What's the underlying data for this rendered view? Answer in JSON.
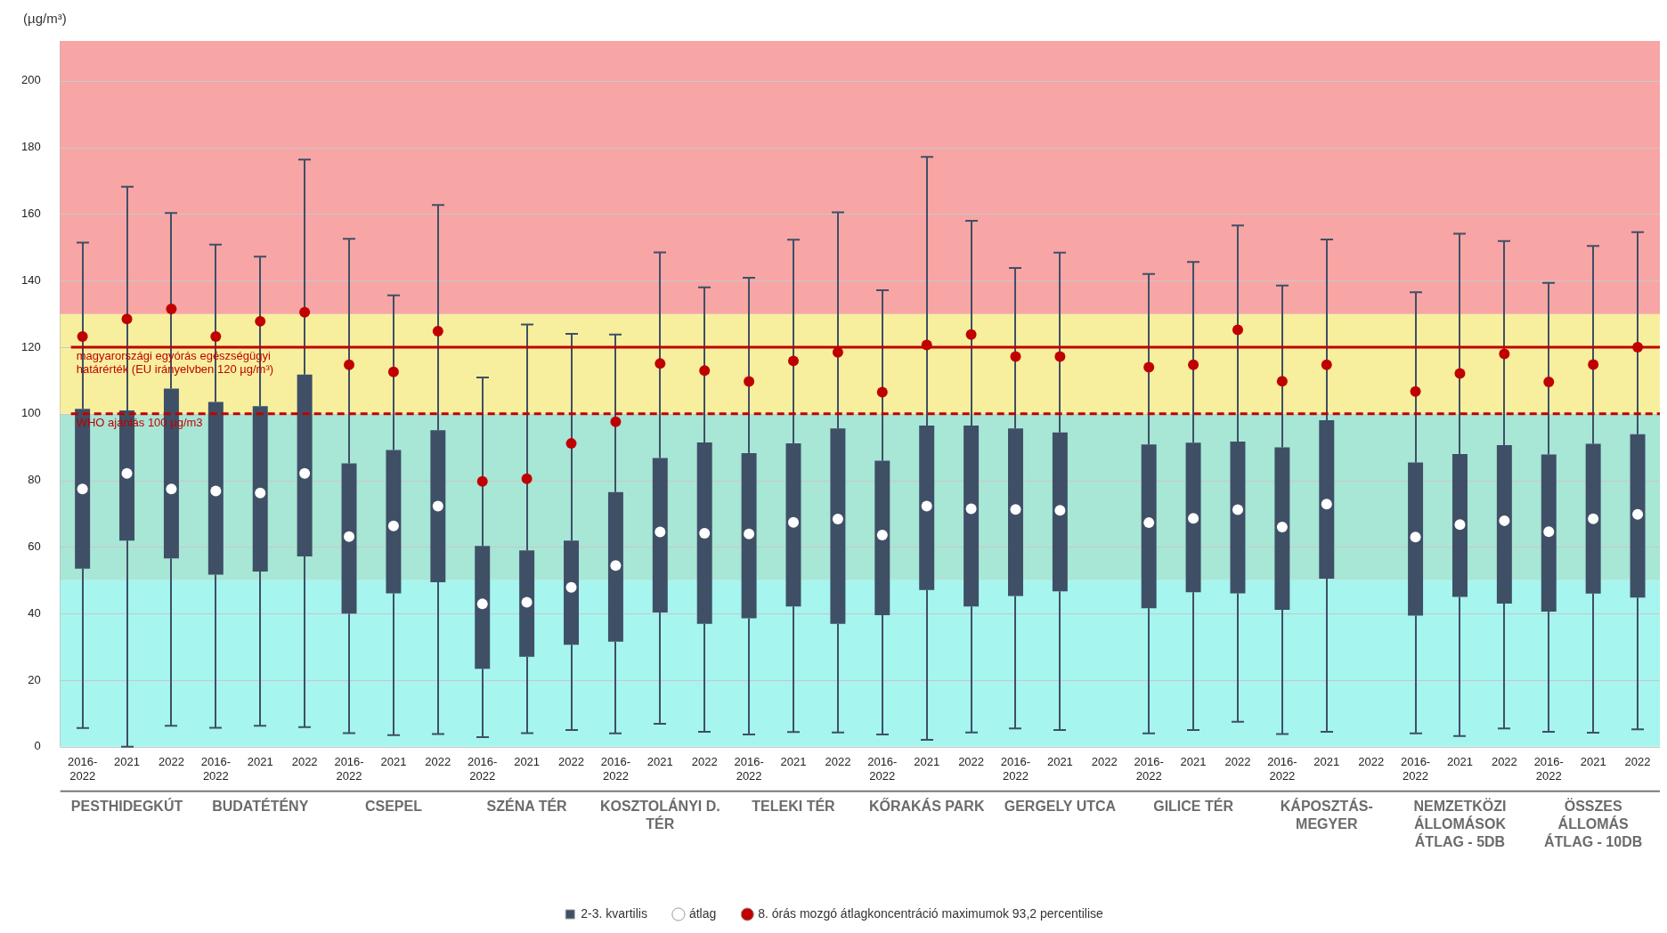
{
  "chart_data": {
    "type": "box",
    "ylabel": "(µg/m³)",
    "categories": [
      "2016-2022",
      "2021",
      "2022",
      "2016-2022",
      "2021",
      "2022",
      "2016-2022",
      "2021",
      "2022",
      "2016-2022",
      "2021",
      "2022",
      "2016-2022",
      "2021",
      "2022",
      "2016-2022",
      "2021",
      "2022",
      "2016-2022",
      "2021",
      "2022",
      "2016-2022",
      "2021",
      "2022",
      "2016-2022",
      "2021",
      "2022",
      "2016-2022",
      "2021",
      "2022",
      "2016-2022",
      "2021",
      "2022",
      "2016-2022",
      "2021",
      "2022"
    ],
    "annotations": [
      "PESTHIDEGKÚT",
      "BUDATÉTÉNY",
      "CSEPEL",
      "SZÉNA TÉR",
      "KOSZTOLÁNYI D. TÉR",
      "TELEKI TÉR",
      "KŐRAKÁS PARK",
      "GERGELY UTCA",
      "GILICE TÉR",
      "KÁPOSZTÁS-MEGYER",
      "NEMZETKÖZI ÁLLOMÁSOK ÁTLAG - 5DB",
      "ÖSSZES ÁLLOMÁS ÁTLAG - 10DB"
    ],
    "series": [
      {
        "name": "2-3. kvartilis",
        "color": "#3f4f66",
        "boxes": [
          {
            "low": 5.6,
            "q1": 53.5,
            "q3": 101.5,
            "high": 151.4
          },
          {
            "low": 0,
            "q1": 61.9,
            "q3": 101,
            "high": 168.2
          },
          {
            "low": 6.3,
            "q1": 56.6,
            "q3": 107.6,
            "high": 160.3
          },
          {
            "low": 5.7,
            "q1": 51.7,
            "q3": 103.6,
            "high": 150.8
          },
          {
            "low": 6.3,
            "q1": 52.6,
            "q3": 102.3,
            "high": 147.2
          },
          {
            "low": 5.9,
            "q1": 57.2,
            "q3": 111.8,
            "high": 176.4
          },
          {
            "low": 4.1,
            "q1": 40.0,
            "q3": 85.1,
            "high": 152.6
          },
          {
            "low": 3.5,
            "q1": 46.1,
            "q3": 89.1,
            "high": 135.6
          },
          {
            "low": 3.8,
            "q1": 49.4,
            "q3": 95.1,
            "high": 162.7
          },
          {
            "low": 2.9,
            "q1": 23.4,
            "q3": 60.3,
            "high": 110.9
          },
          {
            "low": 4.1,
            "q1": 27.0,
            "q3": 59.0,
            "high": 126.8
          },
          {
            "low": 5.0,
            "q1": 30.6,
            "q3": 61.9,
            "high": 124.0
          },
          {
            "low": 4.0,
            "q1": 31.6,
            "q3": 76.5,
            "high": 123.8
          },
          {
            "low": 6.9,
            "q1": 40.3,
            "q3": 86.7,
            "high": 148.5
          },
          {
            "low": 4.5,
            "q1": 36.9,
            "q3": 91.4,
            "high": 138.0
          },
          {
            "low": 3.7,
            "q1": 38.6,
            "q3": 88.2,
            "high": 140.9
          },
          {
            "low": 4.4,
            "q1": 42.1,
            "q3": 91.1,
            "high": 152.3
          },
          {
            "low": 4.3,
            "q1": 36.9,
            "q3": 95.6,
            "high": 160.5
          },
          {
            "low": 3.7,
            "q1": 39.5,
            "q3": 85.9,
            "high": 137.1
          },
          {
            "low": 2.1,
            "q1": 47.1,
            "q3": 96.5,
            "high": 177.2
          },
          {
            "low": 4.3,
            "q1": 42.1,
            "q3": 96.5,
            "high": 158.0
          },
          {
            "low": 5.5,
            "q1": 45.3,
            "q3": 95.6,
            "high": 143.8
          },
          {
            "low": 5.0,
            "q1": 46.7,
            "q3": 94.4,
            "high": 148.4
          },
          null,
          {
            "low": 4.0,
            "q1": 41.6,
            "q3": 90.8,
            "high": 142.0
          },
          {
            "low": 5.0,
            "q1": 46.4,
            "q3": 91.3,
            "high": 145.6
          },
          {
            "low": 7.5,
            "q1": 46.1,
            "q3": 91.7,
            "high": 156.6
          },
          {
            "low": 3.8,
            "q1": 41.1,
            "q3": 89.9,
            "high": 138.5
          },
          {
            "low": 4.5,
            "q1": 50.5,
            "q3": 98.1,
            "high": 152.4
          },
          null,
          {
            "low": 4.0,
            "q1": 39.4,
            "q3": 85.4,
            "high": 136.5
          },
          {
            "low": 3.2,
            "q1": 45.0,
            "q3": 87.9,
            "high": 154.1
          },
          {
            "low": 5.5,
            "q1": 43.0,
            "q3": 90.6,
            "high": 151.9
          },
          {
            "low": 4.5,
            "q1": 40.6,
            "q3": 87.8,
            "high": 139.3
          },
          {
            "low": 4.2,
            "q1": 46.0,
            "q3": 91.0,
            "high": 150.4
          },
          {
            "low": 5.2,
            "q1": 44.8,
            "q3": 93.9,
            "high": 154.6
          }
        ]
      },
      {
        "type": "scatter",
        "name": "átlag",
        "color": "#ffffff",
        "values": [
          77.4,
          82.1,
          77.4,
          76.8,
          76.2,
          82.1,
          63.1,
          66.3,
          72.3,
          42.9,
          43.4,
          47.9,
          54.4,
          64.5,
          64.1,
          63.9,
          67.4,
          68.4,
          63.6,
          72.3,
          71.5,
          71.3,
          71.0,
          null,
          67.3,
          68.6,
          71.2,
          66.0,
          72.9,
          null,
          63.0,
          66.7,
          67.9,
          64.6,
          68.5,
          69.8
        ]
      },
      {
        "type": "scatter",
        "name": "8. órás mozgó átlagkoncentráció maximumok 93,2 percentilise",
        "color": "#c00000",
        "values": [
          123.2,
          128.5,
          131.5,
          123.2,
          127.8,
          130.5,
          114.7,
          112.6,
          124.8,
          79.7,
          80.5,
          91.1,
          97.6,
          115.1,
          113.0,
          109.7,
          115.9,
          118.5,
          106.5,
          120.7,
          123.8,
          117.2,
          117.2,
          null,
          114.0,
          114.7,
          125.2,
          109.8,
          114.7,
          null,
          106.7,
          112.1,
          118.0,
          109.6,
          114.8,
          120.0
        ]
      }
    ],
    "ylim": [
      0,
      212
    ],
    "yticks": [
      0,
      20,
      40,
      60,
      80,
      100,
      120,
      140,
      160,
      180,
      200
    ],
    "ref_lines": [
      {
        "axis": "y",
        "value": 120,
        "label": "magyarországi egyórás egészségügyi határérték (EU irányelvben 120 µg/m³)",
        "color": "#c00000",
        "line_style": "solid"
      },
      {
        "axis": "y",
        "value": 100,
        "label": "WHO ajánlás 100 µg/m3",
        "color": "#c00000",
        "line_style": "dashed"
      }
    ],
    "bands": [
      {
        "axis": "y",
        "from": 0,
        "to": 50,
        "color": "#a6f5ef"
      },
      {
        "axis": "y",
        "from": 50,
        "to": 100,
        "color": "#a8e6d6"
      },
      {
        "axis": "y",
        "from": 100,
        "to": 130,
        "color": "#f7ef9e"
      },
      {
        "axis": "y",
        "from": 130,
        "to": 212,
        "color": "#f8a5a5"
      }
    ],
    "grid": "y",
    "legend": "bottom",
    "marker": "circle"
  }
}
